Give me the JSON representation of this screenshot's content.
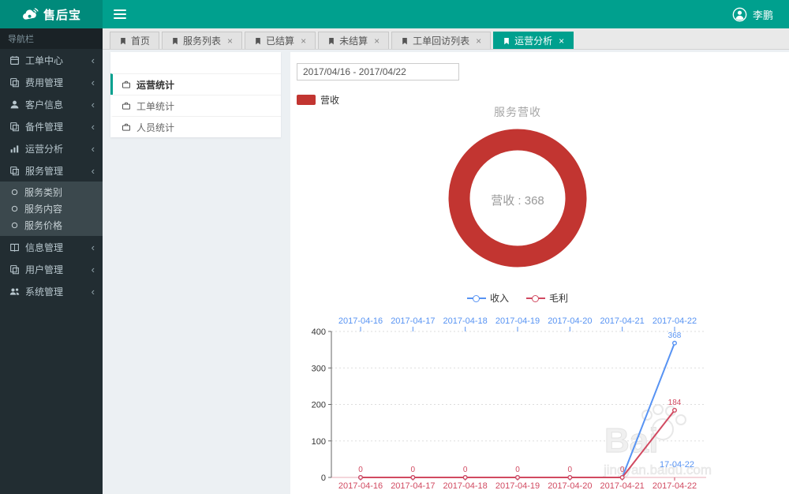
{
  "header": {
    "logo": "售后宝",
    "user": "李鹏"
  },
  "sidebar": {
    "section_label": "导航栏",
    "items": [
      {
        "label": "工单中心",
        "icon": "calendar"
      },
      {
        "label": "费用管理",
        "icon": "docs"
      },
      {
        "label": "客户信息",
        "icon": "user"
      },
      {
        "label": "备件管理",
        "icon": "docs"
      },
      {
        "label": "运营分析",
        "icon": "chart-bar"
      },
      {
        "label": "服务管理",
        "icon": "docs",
        "expanded": true
      },
      {
        "label": "信息管理",
        "icon": "book"
      },
      {
        "label": "用户管理",
        "icon": "docs"
      },
      {
        "label": "系统管理",
        "icon": "users"
      }
    ],
    "submenu": [
      {
        "label": "服务类别",
        "icon": "circle-o"
      },
      {
        "label": "服务内容",
        "icon": "circle-o"
      },
      {
        "label": "服务价格",
        "icon": "circle-o"
      }
    ]
  },
  "tabs": [
    {
      "label": "首页",
      "icon": "bookmark",
      "closable": false
    },
    {
      "label": "服务列表",
      "icon": "bookmark",
      "closable": true
    },
    {
      "label": "已结算",
      "icon": "bookmark",
      "closable": true
    },
    {
      "label": "未结算",
      "icon": "bookmark",
      "closable": true
    },
    {
      "label": "工单回访列表",
      "icon": "bookmark",
      "closable": true
    },
    {
      "label": "运营分析",
      "icon": "bookmark",
      "closable": true,
      "active": true
    }
  ],
  "stats_menu": [
    {
      "label": "运营统计",
      "icon": "briefcase",
      "active": true
    },
    {
      "label": "工单统计",
      "icon": "briefcase"
    },
    {
      "label": "人员统计",
      "icon": "briefcase"
    }
  ],
  "main": {
    "date_range": "2017/04/16 - 2017/04/22",
    "legend_label": "营收"
  },
  "ui": {
    "close": "×",
    "chevron": "‹"
  },
  "theme": {
    "accent": "#00a08e",
    "sidebar_bg": "#222d32",
    "donut_red": "#c23531"
  },
  "chart_data": [
    {
      "type": "pie",
      "subtype": "donut",
      "title": "服务营收",
      "center_label": "营收 : 368",
      "color": "#c23531",
      "series": [
        {
          "name": "营收",
          "value": 368
        }
      ]
    },
    {
      "type": "line",
      "categories": [
        "2017-04-16",
        "2017-04-17",
        "2017-04-18",
        "2017-04-19",
        "2017-04-20",
        "2017-04-21",
        "2017-04-22"
      ],
      "series": [
        {
          "name": "收入",
          "color": "#5793f3",
          "values": [
            0,
            0,
            0,
            0,
            0,
            0,
            368
          ],
          "label_mode": "nonzero"
        },
        {
          "name": "毛利",
          "color": "#d14a61",
          "values": [
            0,
            0,
            0,
            0,
            0,
            0,
            184
          ],
          "label_mode": "all"
        }
      ],
      "ylim": [
        0,
        400
      ],
      "yticks": [
        0,
        100,
        200,
        300,
        400
      ],
      "axis_top_color": "#5793f3",
      "axis_bottom_color": "#d14a61",
      "grid": true,
      "legend_position": "top",
      "stray_label": "17-04-22",
      "watermark": [
        "Bai",
        "jingyan.baidu.com"
      ]
    }
  ]
}
